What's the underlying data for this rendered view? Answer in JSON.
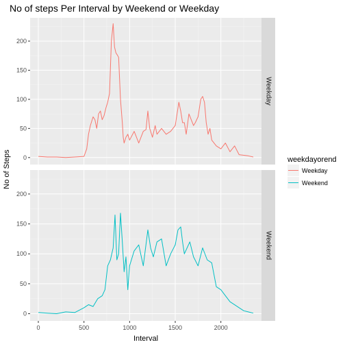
{
  "chart_data": {
    "type": "line",
    "title": "No of steps Per Interval by Weekend or Weekday",
    "xlabel": "Interval",
    "ylabel": "No of Steps",
    "xlim": [
      -90,
      2445
    ],
    "ylim": [
      -12,
      240
    ],
    "x_ticks": [
      0,
      500,
      1000,
      1500,
      2000
    ],
    "x_tick_labels": [
      "0",
      "500",
      "1000",
      "1500",
      "2000"
    ],
    "y_ticks": [
      0,
      50,
      100,
      150,
      200
    ],
    "y_tick_labels": [
      "0",
      "50",
      "100",
      "150",
      "200"
    ],
    "grid": true,
    "legend": {
      "title": "weekdayorend",
      "position": "right",
      "entries": [
        "Weekday",
        "Weekend"
      ]
    },
    "colors": {
      "Weekday": "#f8766d",
      "Weekend": "#00bfc4"
    },
    "facets": [
      "Weekday",
      "Weekend"
    ],
    "series": [
      {
        "name": "Weekday",
        "x": [
          0,
          100,
          200,
          300,
          400,
          500,
          530,
          550,
          570,
          600,
          620,
          640,
          660,
          680,
          700,
          720,
          740,
          760,
          780,
          800,
          820,
          835,
          850,
          870,
          880,
          900,
          920,
          930,
          940,
          960,
          980,
          1000,
          1050,
          1100,
          1150,
          1180,
          1200,
          1220,
          1250,
          1280,
          1300,
          1350,
          1400,
          1450,
          1500,
          1540,
          1560,
          1580,
          1600,
          1620,
          1650,
          1700,
          1720,
          1750,
          1780,
          1800,
          1820,
          1840,
          1860,
          1880,
          1900,
          1950,
          2000,
          2050,
          2100,
          2150,
          2200,
          2300,
          2355
        ],
        "y": [
          2,
          1,
          1,
          0,
          1,
          2,
          15,
          40,
          55,
          70,
          65,
          50,
          75,
          80,
          65,
          72,
          85,
          95,
          110,
          200,
          230,
          190,
          180,
          175,
          172,
          100,
          60,
          35,
          25,
          35,
          40,
          30,
          45,
          25,
          45,
          48,
          80,
          50,
          35,
          55,
          40,
          50,
          40,
          45,
          55,
          95,
          80,
          60,
          60,
          40,
          75,
          55,
          60,
          70,
          100,
          105,
          95,
          60,
          40,
          50,
          30,
          20,
          15,
          25,
          10,
          20,
          5,
          3,
          1
        ]
      },
      {
        "name": "Weekend",
        "x": [
          0,
          100,
          200,
          300,
          400,
          500,
          550,
          600,
          650,
          700,
          730,
          760,
          790,
          820,
          840,
          860,
          880,
          900,
          920,
          940,
          960,
          980,
          1000,
          1050,
          1100,
          1150,
          1200,
          1230,
          1260,
          1300,
          1350,
          1400,
          1450,
          1500,
          1530,
          1560,
          1580,
          1600,
          1630,
          1660,
          1700,
          1750,
          1800,
          1850,
          1900,
          1950,
          2000,
          2050,
          2100,
          2150,
          2200,
          2250,
          2300,
          2355
        ],
        "y": [
          2,
          1,
          0,
          3,
          2,
          10,
          15,
          12,
          25,
          30,
          40,
          80,
          90,
          110,
          165,
          90,
          100,
          168,
          120,
          70,
          95,
          40,
          80,
          105,
          115,
          80,
          140,
          110,
          95,
          120,
          125,
          80,
          100,
          115,
          140,
          145,
          120,
          100,
          110,
          120,
          95,
          80,
          110,
          90,
          85,
          45,
          40,
          30,
          20,
          15,
          10,
          5,
          3,
          1
        ]
      }
    ]
  }
}
